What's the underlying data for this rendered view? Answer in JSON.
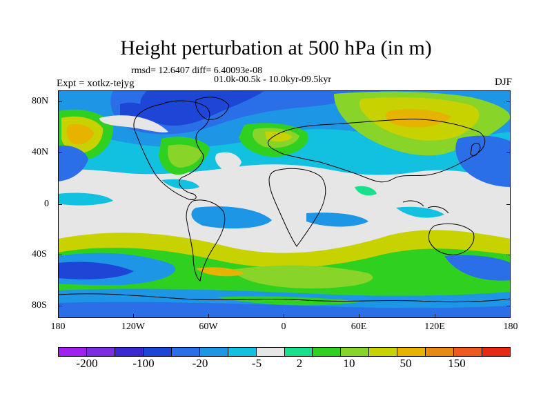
{
  "title": "Height perturbation at 500 hPa (in m)",
  "stats": "rmsd= 12.6407 diff= 6.40093e-08",
  "period": "01.0k-00.5k - 10.0kyr-09.5kyr",
  "experiment": "Expt = xotkz-tejyg",
  "season": "DJF",
  "lat_labels": [
    "80N",
    "40N",
    "0",
    "40S",
    "80S"
  ],
  "lon_labels": [
    "180",
    "120W",
    "60W",
    "0",
    "60E",
    "120E",
    "180"
  ],
  "colorbar": {
    "colors": [
      "#a020f0",
      "#7b2ee0",
      "#3c28d0",
      "#1e46d6",
      "#2a6ee8",
      "#1e96e6",
      "#12c0e0",
      "#e6e6e6",
      "#18e08c",
      "#30d020",
      "#88d428",
      "#c8d200",
      "#e6b400",
      "#e68a14",
      "#ee5a1e",
      "#e62814"
    ],
    "labels": [
      "-200",
      "-100",
      "-20",
      "-5",
      "2",
      "10",
      "50",
      "150"
    ]
  },
  "palette": {
    "neutral": "#e6e6e6",
    "c_dblue": "#1e46d6",
    "c_blue": "#2a6ee8",
    "c_lblue": "#1e96e6",
    "c_cyan": "#12c0e0",
    "c_green": "#30d020",
    "c_lgreen": "#88d428",
    "c_yg": "#c8d200",
    "c_orange": "#e6b400"
  }
}
